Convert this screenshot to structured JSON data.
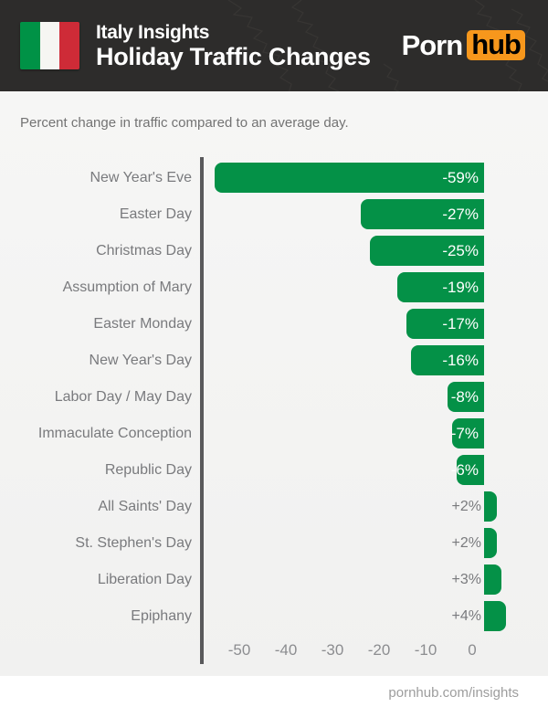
{
  "header": {
    "title_line1": "Italy Insights",
    "title_line2": "Holiday Traffic Changes",
    "flag_colors": {
      "green": "#009246",
      "white": "#f6f6f2",
      "red": "#ce2b37"
    },
    "logo": {
      "part1": "Porn",
      "part2": "hub",
      "accent": "#f7971c"
    }
  },
  "subtitle": "Percent change in traffic compared to an average day.",
  "chart_data": {
    "type": "bar",
    "orientation": "horizontal",
    "title": "Holiday Traffic Changes",
    "xlabel": "Percent change in traffic compared to an average day",
    "categories": [
      "New Year's Eve",
      "Easter Day",
      "Christmas Day",
      "Assumption of Mary",
      "Easter Monday",
      "New Year's Day",
      "Labor Day / May Day",
      "Immaculate Conception",
      "Republic Day",
      "All Saints' Day",
      "St. Stephen's Day",
      "Liberation Day",
      "Epiphany"
    ],
    "values": [
      -59,
      -27,
      -25,
      -19,
      -17,
      -16,
      -8,
      -7,
      -6,
      2,
      2,
      3,
      4
    ],
    "value_labels": [
      "-59%",
      "-27%",
      "-25%",
      "-19%",
      "-17%",
      "-16%",
      "-8%",
      "-7%",
      "-6%",
      "+2%",
      "+2%",
      "+3%",
      "+4%"
    ],
    "bar_color": "#049147",
    "xlim": [
      -62,
      8
    ],
    "grid": false,
    "axis": {
      "ticks": [
        -50,
        -40,
        -30,
        -20,
        -10,
        0
      ],
      "tick_labels": [
        "-50",
        "-40",
        "-30",
        "-20",
        "-10",
        "0"
      ]
    }
  },
  "footer": {
    "link": "pornhub.com/insights"
  }
}
